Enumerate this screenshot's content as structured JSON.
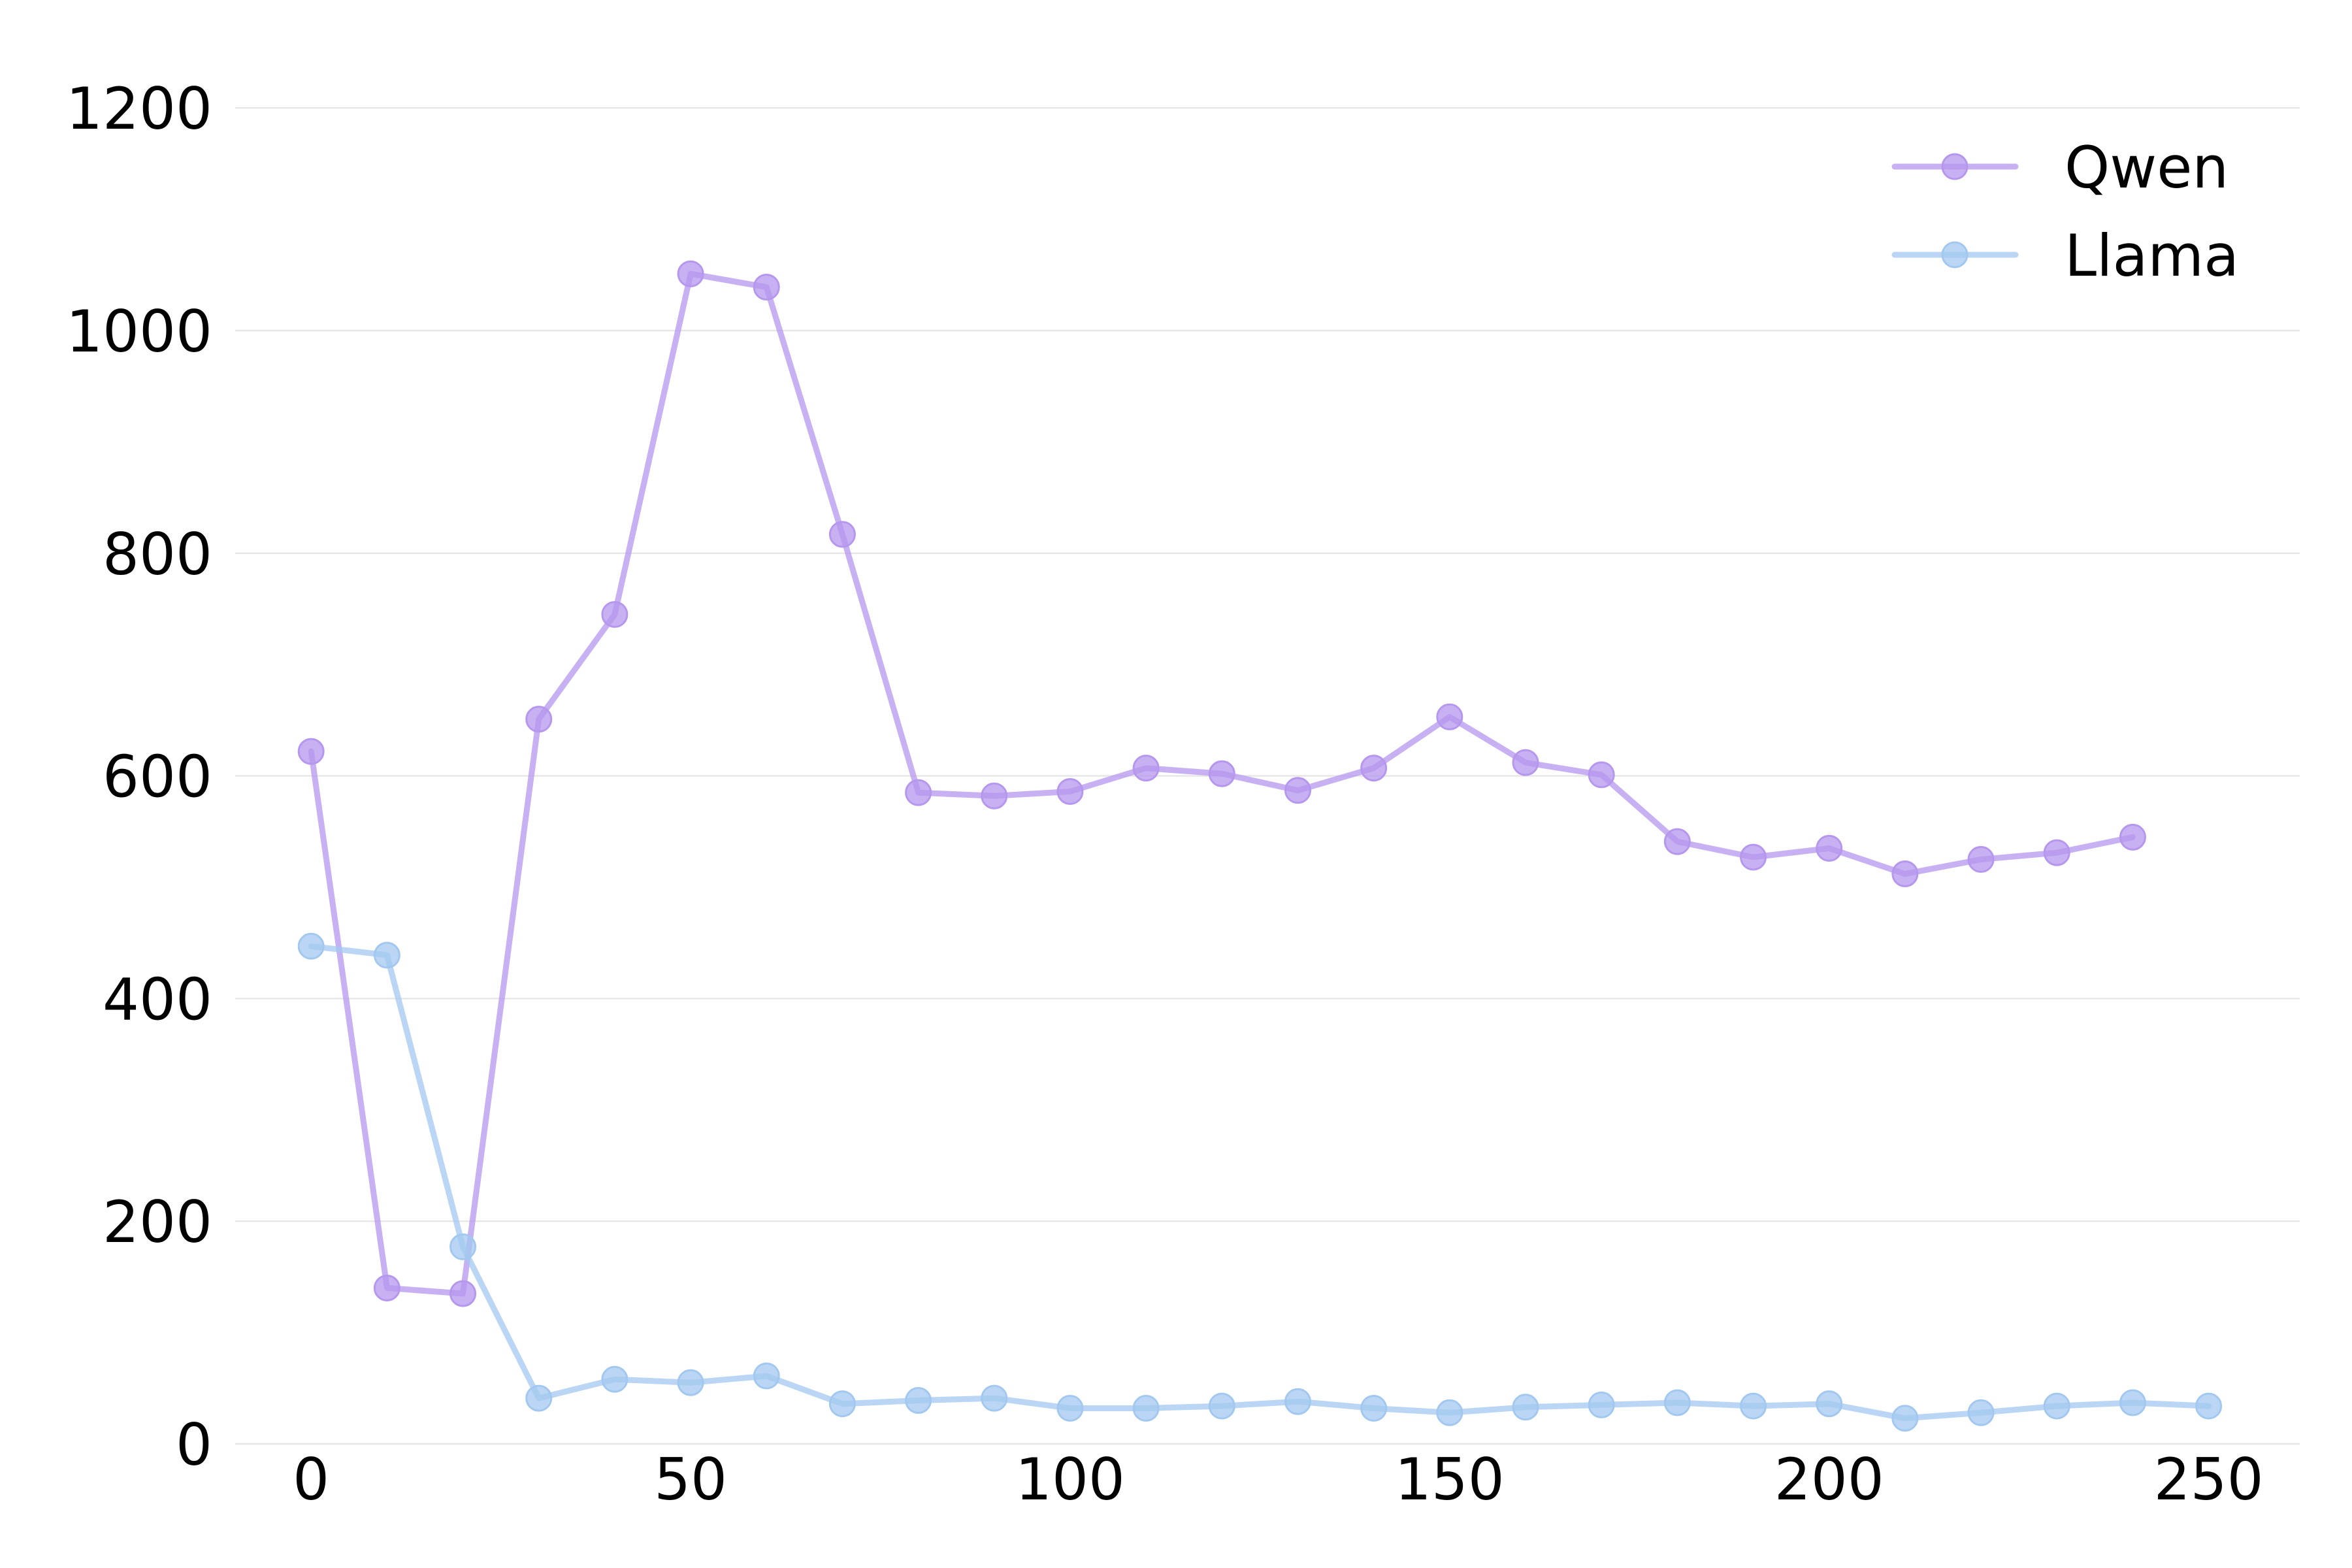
{
  "chart_data": {
    "type": "line",
    "title": "",
    "xlabel": "",
    "ylabel": "",
    "xlim": [
      -10,
      262
    ],
    "ylim": [
      0,
      1200
    ],
    "grid": "horizontal",
    "legend_placement": "top-right",
    "x_ticks": [
      0,
      50,
      100,
      150,
      200,
      250
    ],
    "y_ticks": [
      0,
      200,
      400,
      600,
      800,
      1000,
      1200
    ],
    "series": [
      {
        "name": "Qwen",
        "color": "#b697ee",
        "x": [
          0,
          10,
          20,
          30,
          40,
          50,
          60,
          70,
          80,
          90,
          100,
          110,
          120,
          130,
          140,
          150,
          160,
          170,
          180,
          190,
          200,
          210,
          220,
          230,
          240
        ],
        "y": [
          622,
          140,
          135,
          651,
          745,
          1051,
          1039,
          817,
          585,
          582,
          586,
          607,
          602,
          587,
          607,
          653,
          612,
          601,
          541,
          527,
          535,
          512,
          525,
          531,
          545
        ]
      },
      {
        "name": "Llama",
        "color": "#a3c8f0",
        "x": [
          0,
          10,
          20,
          30,
          40,
          50,
          60,
          70,
          80,
          90,
          100,
          110,
          120,
          130,
          140,
          150,
          160,
          170,
          180,
          190,
          200,
          210,
          220,
          230,
          240,
          250
        ],
        "y": [
          447,
          439,
          177,
          41,
          58,
          55,
          61,
          36,
          39,
          41,
          32,
          32,
          34,
          38,
          32,
          28,
          33,
          35,
          37,
          34,
          36,
          23,
          28,
          34,
          37,
          34
        ]
      }
    ]
  }
}
